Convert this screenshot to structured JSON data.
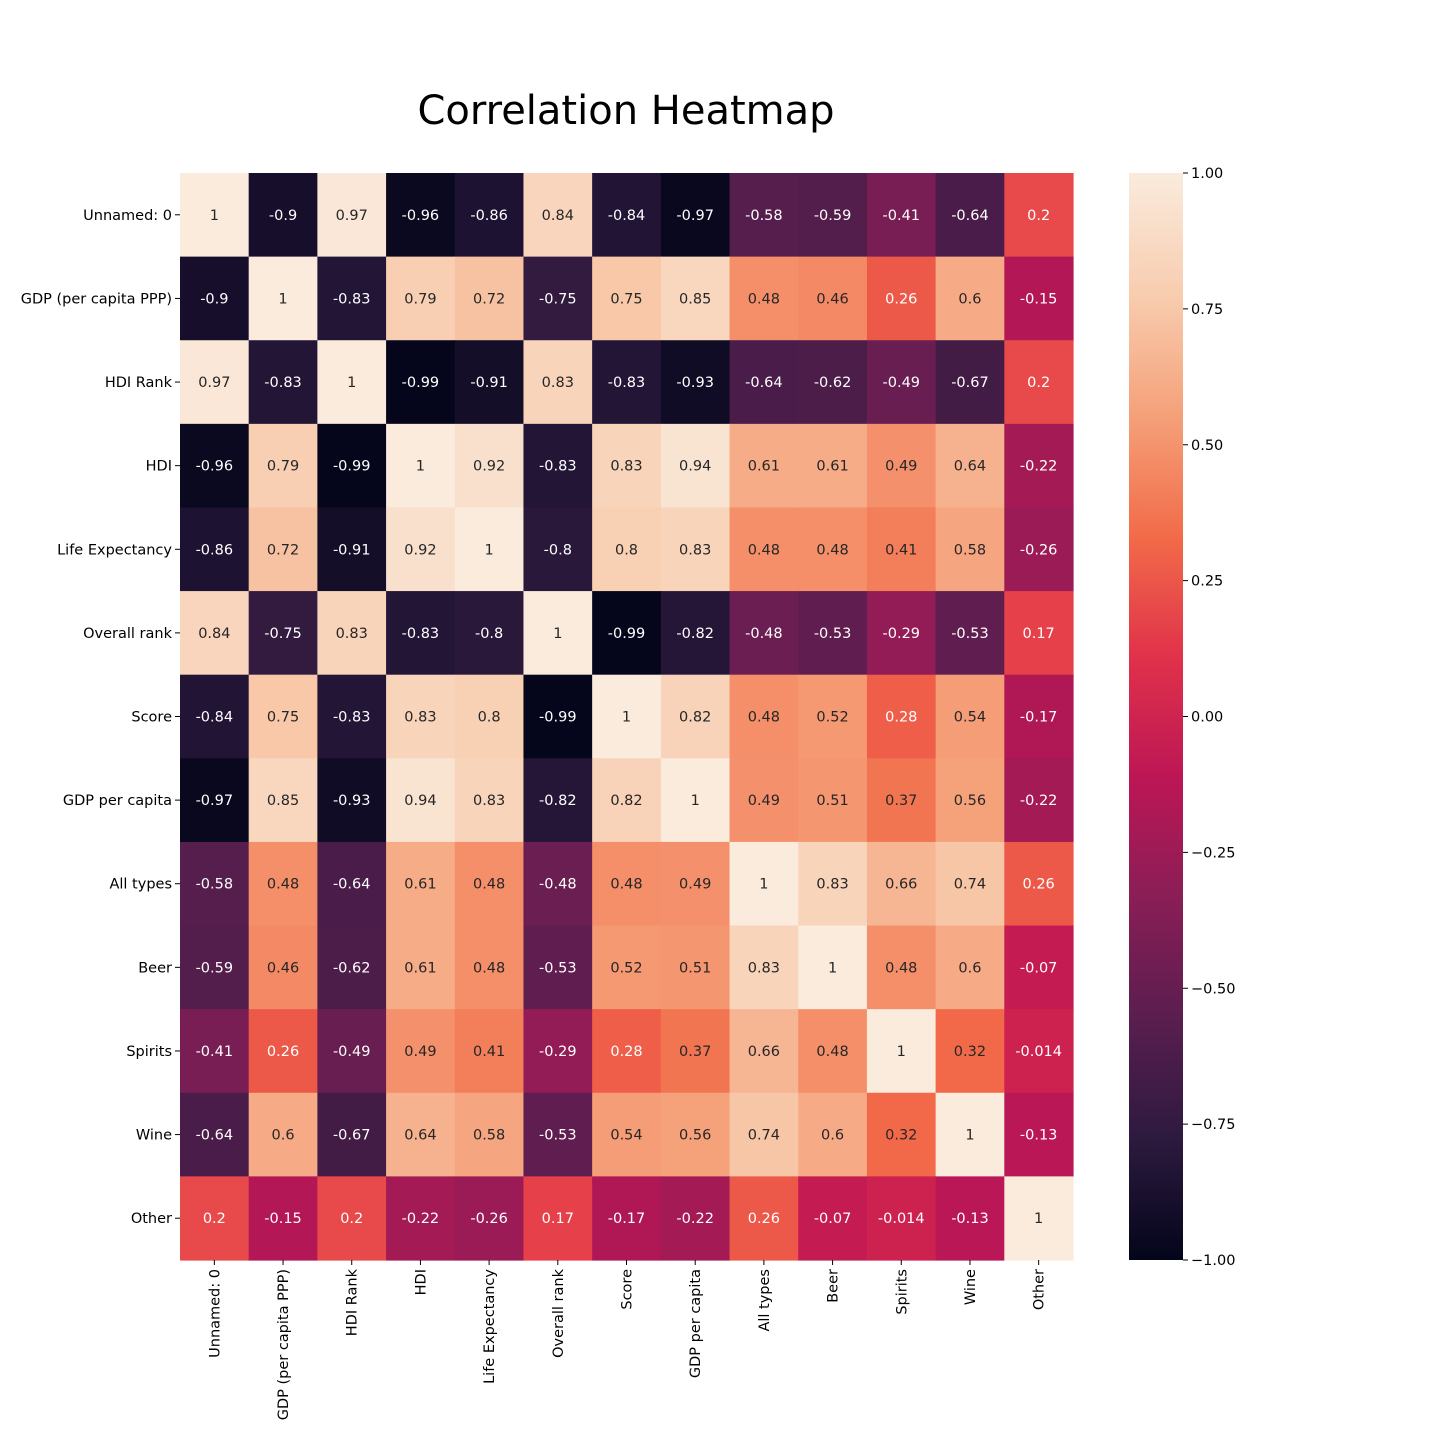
{
  "chart_data": {
    "type": "heatmap",
    "title": "Correlation Heatmap",
    "labels": [
      "Unnamed: 0",
      "GDP (per capita PPP)",
      "HDI Rank",
      "HDI",
      "Life Expectancy",
      "Overall rank",
      "Score",
      "GDP per capita",
      "All types",
      "Beer",
      "Spirits",
      "Wine",
      "Other"
    ],
    "values": [
      [
        1,
        -0.9,
        0.97,
        -0.96,
        -0.86,
        0.84,
        -0.84,
        -0.97,
        -0.58,
        -0.59,
        -0.41,
        -0.64,
        0.2
      ],
      [
        -0.9,
        1,
        -0.83,
        0.79,
        0.72,
        -0.75,
        0.75,
        0.85,
        0.48,
        0.46,
        0.26,
        0.6,
        -0.15
      ],
      [
        0.97,
        -0.83,
        1,
        -0.99,
        -0.91,
        0.83,
        -0.83,
        -0.93,
        -0.64,
        -0.62,
        -0.49,
        -0.67,
        0.2
      ],
      [
        -0.96,
        0.79,
        -0.99,
        1,
        0.92,
        -0.83,
        0.83,
        0.94,
        0.61,
        0.61,
        0.49,
        0.64,
        -0.22
      ],
      [
        -0.86,
        0.72,
        -0.91,
        0.92,
        1,
        -0.8,
        0.8,
        0.83,
        0.48,
        0.48,
        0.41,
        0.58,
        -0.26
      ],
      [
        0.84,
        -0.75,
        0.83,
        -0.83,
        -0.8,
        1,
        -0.99,
        -0.82,
        -0.48,
        -0.53,
        -0.29,
        -0.53,
        0.17
      ],
      [
        -0.84,
        0.75,
        -0.83,
        0.83,
        0.8,
        -0.99,
        1,
        0.82,
        0.48,
        0.52,
        0.28,
        0.54,
        -0.17
      ],
      [
        -0.97,
        0.85,
        -0.93,
        0.94,
        0.83,
        -0.82,
        0.82,
        1,
        0.49,
        0.51,
        0.37,
        0.56,
        -0.22
      ],
      [
        -0.58,
        0.48,
        -0.64,
        0.61,
        0.48,
        -0.48,
        0.48,
        0.49,
        1,
        0.83,
        0.66,
        0.74,
        0.26
      ],
      [
        -0.59,
        0.46,
        -0.62,
        0.61,
        0.48,
        -0.53,
        0.52,
        0.51,
        0.83,
        1,
        0.48,
        0.6,
        -0.07
      ],
      [
        -0.41,
        0.26,
        -0.49,
        0.49,
        0.41,
        -0.29,
        0.28,
        0.37,
        0.66,
        0.48,
        1,
        0.32,
        -0.014
      ],
      [
        -0.64,
        0.6,
        -0.67,
        0.64,
        0.58,
        -0.53,
        0.54,
        0.56,
        0.74,
        0.6,
        0.32,
        1,
        -0.13
      ],
      [
        0.2,
        -0.15,
        0.2,
        -0.22,
        -0.26,
        0.17,
        -0.17,
        -0.22,
        0.26,
        -0.07,
        -0.014,
        -0.13,
        1
      ]
    ],
    "colorbar": {
      "range": [
        -1.0,
        1.0
      ],
      "ticks": [
        1.0,
        0.75,
        0.5,
        0.25,
        0.0,
        -0.25,
        -0.5,
        -0.75,
        -1.0
      ],
      "tick_labels": [
        "1.00",
        "0.75",
        "0.50",
        "0.25",
        "0.00",
        "−0.25",
        "−0.50",
        "−0.75",
        "−1.00"
      ],
      "colormap": "rocket",
      "stops": [
        "#03051a",
        "#2d1a3e",
        "#5a1e4f",
        "#8a1e56",
        "#bd1655",
        "#e1324a",
        "#f26c49",
        "#f5a17a",
        "#f8cdb0",
        "#faebdd"
      ]
    },
    "grid": false
  }
}
